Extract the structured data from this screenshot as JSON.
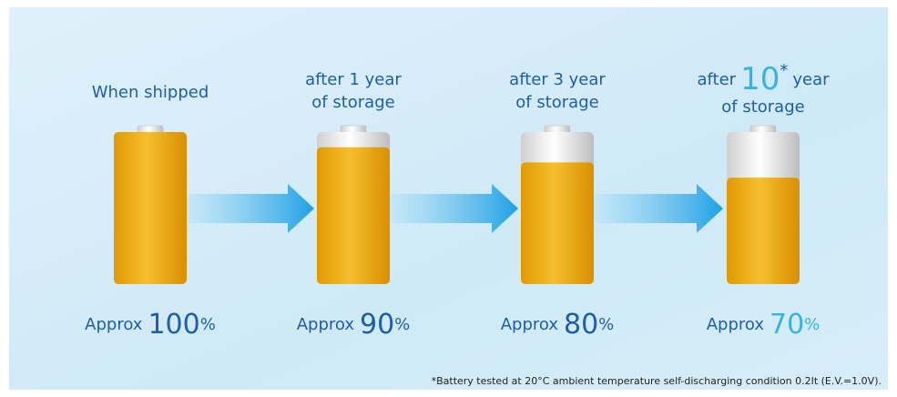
{
  "stages": [
    {
      "title": [
        "When shipped"
      ],
      "prefix": "Approx",
      "value": 100,
      "unit": "%"
    },
    {
      "title": [
        "after 1 year",
        "of storage"
      ],
      "prefix": "Approx",
      "value": 90,
      "unit": "%"
    },
    {
      "title": [
        "after 3 year",
        "of storage"
      ],
      "prefix": "Approx",
      "value": 80,
      "unit": "%"
    },
    {
      "title_big": {
        "before": "after",
        "number": "10",
        "mark": "*",
        "after": "year"
      },
      "title": [
        "of storage"
      ],
      "prefix": "Approx",
      "value": 70,
      "unit": "%",
      "value_color": "#35b3e6"
    }
  ],
  "text_color": "#1d5ea8",
  "footnote": "*Battery tested at 20°C ambient temperature self-discharging condition 0.2It (E.V.=1.0V)."
}
